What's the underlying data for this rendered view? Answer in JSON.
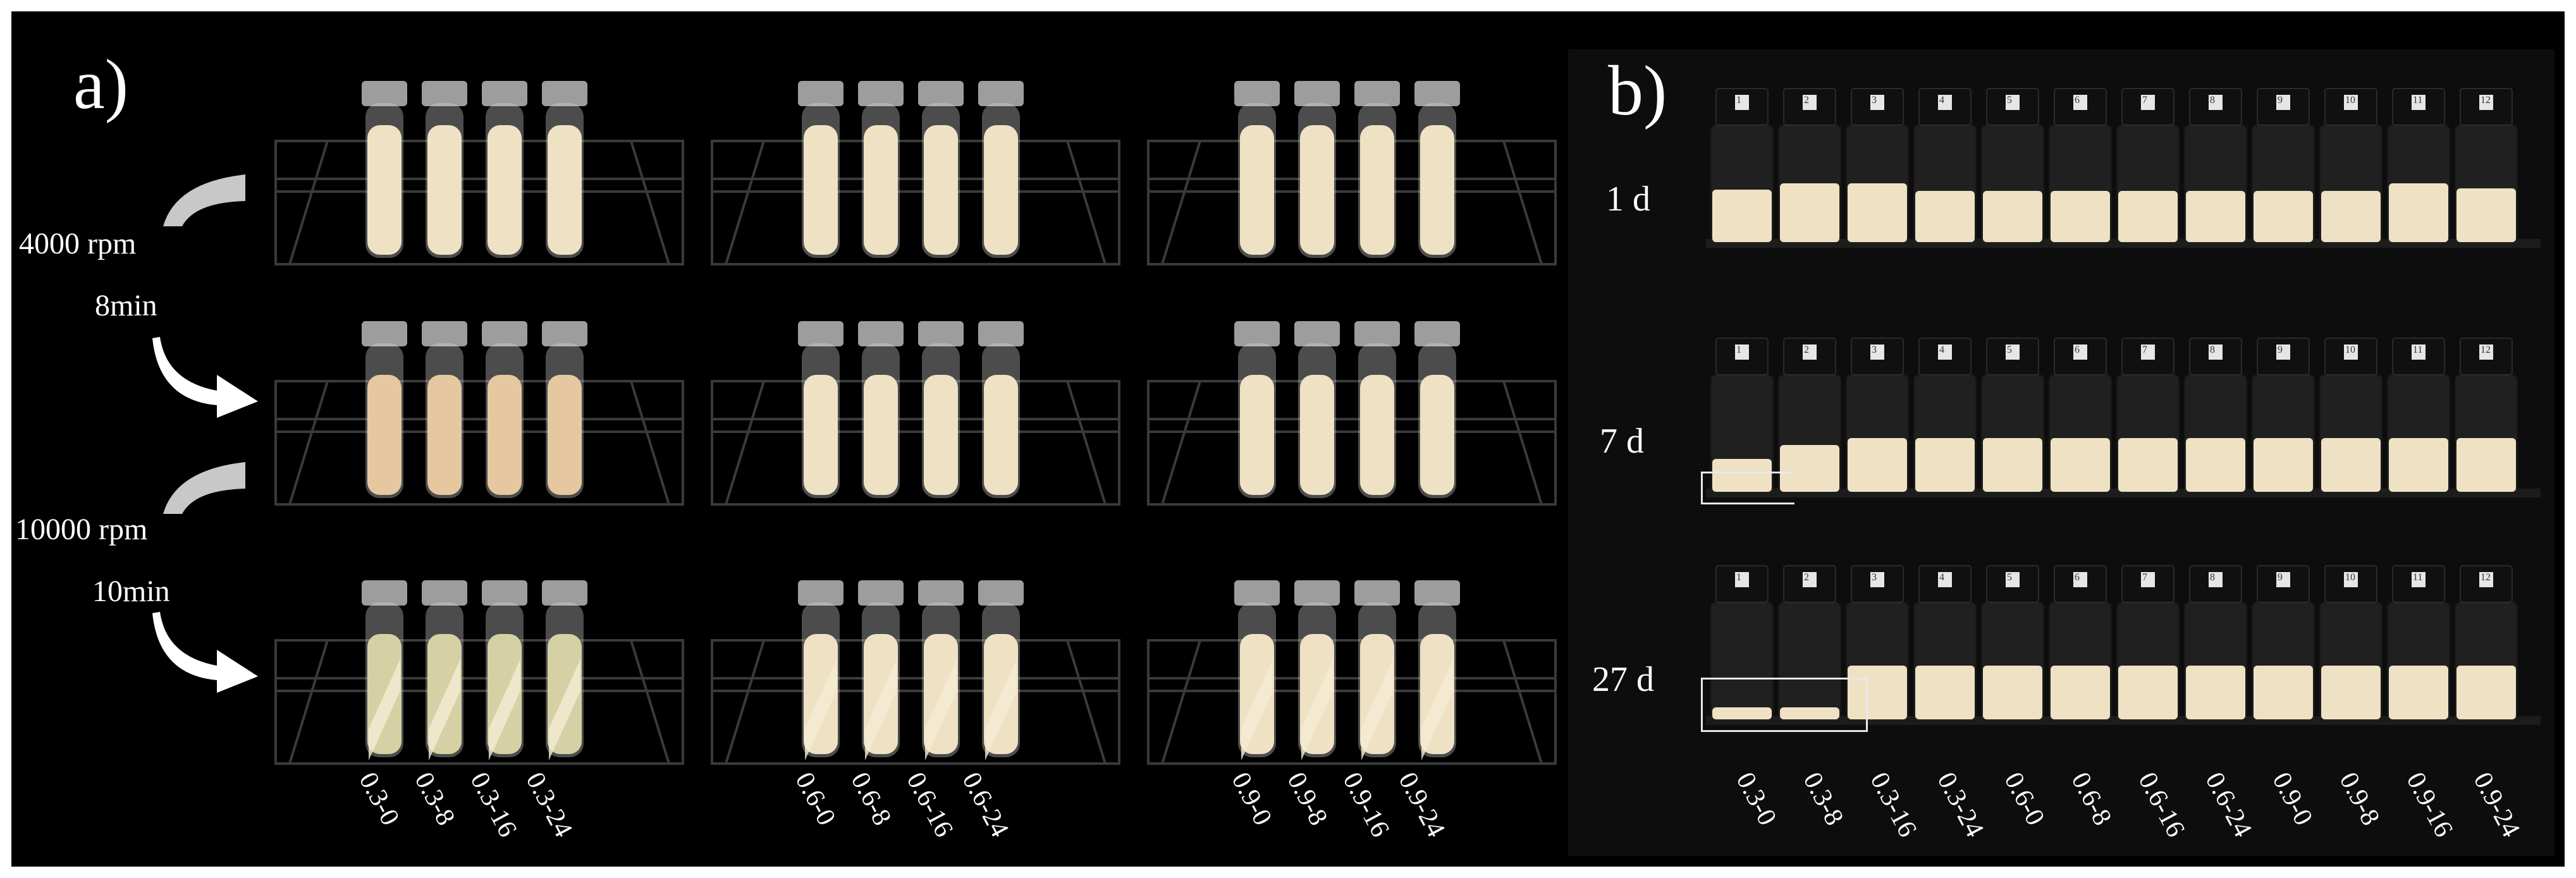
{
  "panel_a": {
    "label": "a)",
    "steps": [
      {
        "speed": "4000 rpm",
        "time": "8min"
      },
      {
        "speed": "10000 rpm",
        "time": "10min"
      }
    ],
    "groups": [
      {
        "samples": [
          "0.3-0",
          "0.3-8",
          "0.3-16",
          "0.3-24"
        ]
      },
      {
        "samples": [
          "0.6-0",
          "0.6-8",
          "0.6-16",
          "0.6-24"
        ]
      },
      {
        "samples": [
          "0.9-0",
          "0.9-8",
          "0.9-16",
          "0.9-24"
        ]
      }
    ]
  },
  "panel_b": {
    "label": "b)",
    "rows": [
      {
        "day": "1 d",
        "caps": [
          "1",
          "2",
          "3",
          "4",
          "5",
          "6",
          "7",
          "8",
          "9",
          "10",
          "11",
          "12"
        ],
        "fill": [
          0.45,
          0.5,
          0.5,
          0.44,
          0.44,
          0.44,
          0.44,
          0.44,
          0.44,
          0.44,
          0.5,
          0.46
        ]
      },
      {
        "day": "7 d",
        "caps": [
          "1",
          "2",
          "3",
          "4",
          "5",
          "6",
          "7",
          "8",
          "9",
          "10",
          "11",
          "12"
        ],
        "fill": [
          0.28,
          0.4,
          0.46,
          0.46,
          0.46,
          0.46,
          0.46,
          0.46,
          0.46,
          0.46,
          0.46,
          0.46
        ]
      },
      {
        "day": "27 d",
        "caps": [
          "1",
          "2",
          "3",
          "4",
          "5",
          "6",
          "7",
          "8",
          "9",
          "10",
          "11",
          "12"
        ],
        "fill": [
          0.1,
          0.1,
          0.46,
          0.46,
          0.46,
          0.46,
          0.46,
          0.46,
          0.46,
          0.46,
          0.46,
          0.46
        ]
      }
    ],
    "samples": [
      "0.3-0",
      "0.3-8",
      "0.3-16",
      "0.3-24",
      "0.6-0",
      "0.6-8",
      "0.6-16",
      "0.6-24",
      "0.9-0",
      "0.9-8",
      "0.9-16",
      "0.9-24"
    ]
  },
  "colors": {
    "background": "#000000",
    "emulsion": "#efe2c4",
    "emulsion_warm": "#e8c9a0",
    "arrow": "#ffffff",
    "arrow_gray": "#c8c8c8"
  }
}
